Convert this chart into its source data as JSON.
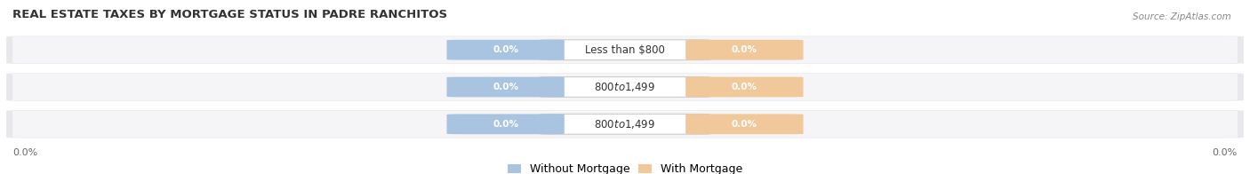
{
  "title": "REAL ESTATE TAXES BY MORTGAGE STATUS IN PADRE RANCHITOS",
  "source": "Source: ZipAtlas.com",
  "categories": [
    "Less than $800",
    "$800 to $1,499",
    "$800 to $1,499"
  ],
  "without_mortgage_labels": [
    "0.0%",
    "0.0%",
    "0.0%"
  ],
  "with_mortgage_labels": [
    "0.0%",
    "0.0%",
    "0.0%"
  ],
  "bar_color_without": "#a8c4e0",
  "bar_color_with": "#f0c89a",
  "row_bg_color": "#e8e8ec",
  "row_bg_light": "#f4f4f6",
  "title_fontsize": 9.5,
  "source_fontsize": 7.5,
  "value_fontsize": 7.5,
  "cat_fontsize": 8.5,
  "legend_fontsize": 9,
  "axis_label": "0.0%",
  "legend_without": "Without Mortgage",
  "legend_with": "With Mortgage"
}
